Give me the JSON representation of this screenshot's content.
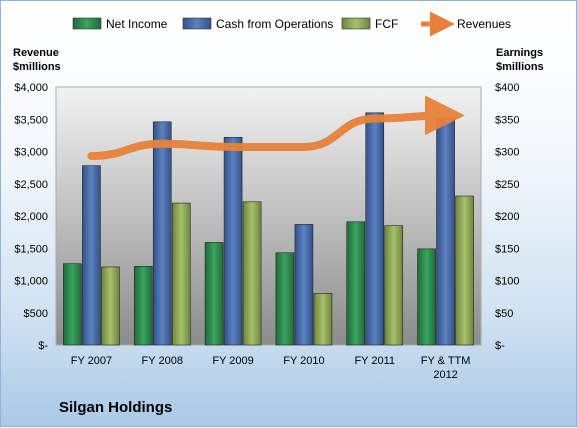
{
  "chart_data": {
    "type": "bar",
    "title": "",
    "left_axis_title": "Revenue\n$millions",
    "right_axis_title": "Earnings\n$millions",
    "company_label": "Silgan Holdings",
    "categories": [
      "FY 2007",
      "FY 2008",
      "FY 2009",
      "FY 2010",
      "FY 2011",
      "FY & TTM\n2012"
    ],
    "left_axis": {
      "min": 0,
      "max": 4000,
      "step": 500,
      "ticks": [
        "$-",
        "$500",
        "$1,000",
        "$1,500",
        "$2,000",
        "$2,500",
        "$3,000",
        "$3,500",
        "$4,000"
      ]
    },
    "right_axis": {
      "min": 0,
      "max": 400,
      "step": 50,
      "ticks": [
        "$-",
        "$50",
        "$100",
        "$150",
        "$200",
        "$250",
        "$300",
        "$350",
        "$400"
      ]
    },
    "series": [
      {
        "name": "Net Income",
        "type": "bar",
        "axis": "right",
        "color": "#2e8b4e",
        "values": [
          126,
          122,
          159,
          143,
          191,
          149
        ]
      },
      {
        "name": "Cash from Operations",
        "type": "bar",
        "axis": "right",
        "color": "#4a6faa",
        "values": [
          278,
          346,
          322,
          187,
          360,
          352
        ]
      },
      {
        "name": "FCF",
        "type": "bar",
        "axis": "right",
        "color": "#8fa85a",
        "values": [
          121,
          220,
          222,
          80,
          185,
          231
        ]
      },
      {
        "name": "Revenues",
        "type": "line",
        "axis": "left",
        "color": "#e8823a",
        "values": [
          2930,
          3120,
          3070,
          3070,
          3510,
          3560
        ]
      }
    ],
    "legend_position": "top",
    "grid": false
  }
}
